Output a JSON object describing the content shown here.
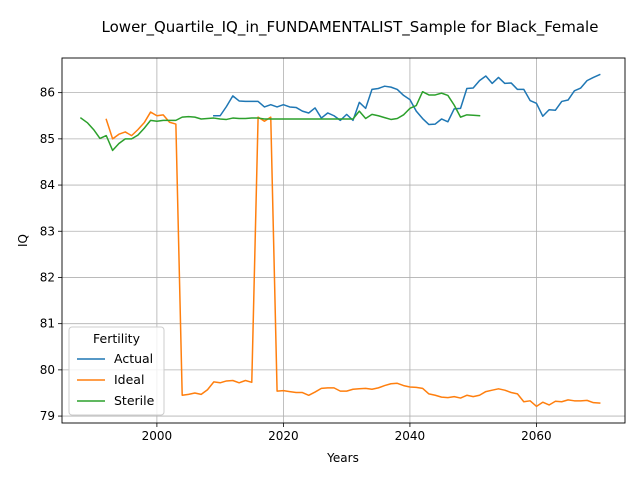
{
  "chart_data": {
    "type": "line",
    "title": "Lower_Quartile_IQ_in_FUNDAMENTALIST_Sample for Black_Female",
    "xlabel": "Years",
    "ylabel": "IQ",
    "xlim": [
      1985,
      2074
    ],
    "ylim": [
      78.85,
      86.75
    ],
    "xticks": [
      2000,
      2020,
      2040,
      2060
    ],
    "yticks": [
      79,
      80,
      81,
      82,
      83,
      84,
      85,
      86
    ],
    "grid": true,
    "legend": {
      "title": "Fertility",
      "placement": "lower-left"
    },
    "series": [
      {
        "name": "Actual",
        "color": "#1f77b4",
        "x": [
          2009,
          2010,
          2011,
          2012,
          2013,
          2014,
          2015,
          2016,
          2017,
          2018,
          2019,
          2020,
          2021,
          2022,
          2023,
          2024,
          2025,
          2026,
          2027,
          2028,
          2029,
          2030,
          2031,
          2032,
          2033,
          2034,
          2035,
          2036,
          2037,
          2038,
          2039,
          2040,
          2041,
          2042,
          2043,
          2044,
          2045,
          2046,
          2047,
          2048,
          2049,
          2050,
          2051,
          2052,
          2053,
          2054,
          2055,
          2056,
          2057,
          2058,
          2059,
          2060,
          2061,
          2062,
          2063,
          2064,
          2065,
          2066,
          2067,
          2068,
          2069,
          2070
        ],
        "y": [
          85.5,
          85.5,
          85.7,
          85.93,
          85.82,
          85.81,
          85.81,
          85.81,
          85.69,
          85.74,
          85.69,
          85.74,
          85.69,
          85.68,
          85.6,
          85.56,
          85.67,
          85.45,
          85.56,
          85.5,
          85.4,
          85.53,
          85.4,
          85.79,
          85.66,
          86.07,
          86.09,
          86.14,
          86.12,
          86.07,
          85.94,
          85.85,
          85.6,
          85.44,
          85.31,
          85.32,
          85.43,
          85.37,
          85.65,
          85.66,
          86.09,
          86.1,
          86.26,
          86.36,
          86.2,
          86.33,
          86.2,
          86.21,
          86.07,
          86.07,
          85.83,
          85.77,
          85.49,
          85.63,
          85.62,
          85.81,
          85.84,
          86.04,
          86.1,
          86.26,
          86.33,
          86.39
        ]
      },
      {
        "name": "Ideal",
        "color": "#ff7f0e",
        "x": [
          1992,
          1993,
          1994,
          1995,
          1996,
          1997,
          1998,
          1999,
          2000,
          2001,
          2002,
          2003,
          2004,
          2005,
          2006,
          2007,
          2008,
          2009,
          2010,
          2011,
          2012,
          2013,
          2014,
          2015,
          2016,
          2017,
          2018,
          2019,
          2020,
          2021,
          2022,
          2023,
          2024,
          2025,
          2026,
          2027,
          2028,
          2029,
          2030,
          2031,
          2032,
          2033,
          2034,
          2035,
          2036,
          2037,
          2038,
          2039,
          2040,
          2041,
          2042,
          2043,
          2044,
          2045,
          2046,
          2047,
          2048,
          2049,
          2050,
          2051,
          2052,
          2053,
          2054,
          2055,
          2056,
          2057,
          2058,
          2059,
          2060,
          2061,
          2062,
          2063,
          2064,
          2065,
          2066,
          2067,
          2068,
          2069,
          2070
        ],
        "y": [
          85.42,
          85.0,
          85.1,
          85.15,
          85.07,
          85.2,
          85.35,
          85.58,
          85.5,
          85.52,
          85.36,
          85.32,
          79.45,
          79.47,
          79.5,
          79.47,
          79.57,
          79.74,
          79.72,
          79.76,
          79.77,
          79.72,
          79.77,
          79.73,
          85.47,
          85.38,
          85.47,
          79.54,
          79.55,
          79.53,
          79.51,
          79.51,
          79.45,
          79.52,
          79.6,
          79.61,
          79.61,
          79.54,
          79.54,
          79.58,
          79.59,
          79.6,
          79.58,
          79.61,
          79.66,
          79.7,
          79.71,
          79.66,
          79.63,
          79.62,
          79.6,
          79.48,
          79.45,
          79.41,
          79.4,
          79.42,
          79.39,
          79.45,
          79.42,
          79.45,
          79.53,
          79.56,
          79.59,
          79.56,
          79.51,
          79.48,
          79.31,
          79.33,
          79.21,
          79.3,
          79.24,
          79.32,
          79.31,
          79.35,
          79.33,
          79.33,
          79.34,
          79.29,
          79.28
        ]
      },
      {
        "name": "Sterile",
        "color": "#2ca02c",
        "x": [
          1988,
          1989,
          1990,
          1991,
          1992,
          1993,
          1994,
          1995,
          1996,
          1997,
          1998,
          1999,
          2000,
          2001,
          2002,
          2003,
          2004,
          2005,
          2006,
          2007,
          2008,
          2009,
          2010,
          2011,
          2012,
          2013,
          2014,
          2015,
          2016,
          2017,
          2018,
          2019,
          2020,
          2021,
          2022,
          2023,
          2024,
          2025,
          2026,
          2027,
          2028,
          2029,
          2030,
          2031,
          2032,
          2033,
          2034,
          2035,
          2036,
          2037,
          2038,
          2039,
          2040,
          2041,
          2042,
          2043,
          2044,
          2045,
          2046,
          2047,
          2048,
          2049,
          2050,
          2051
        ],
        "y": [
          85.45,
          85.35,
          85.2,
          85.01,
          85.07,
          84.75,
          84.9,
          85.0,
          85.0,
          85.08,
          85.23,
          85.4,
          85.38,
          85.4,
          85.4,
          85.4,
          85.47,
          85.48,
          85.47,
          85.43,
          85.44,
          85.45,
          85.43,
          85.42,
          85.45,
          85.44,
          85.44,
          85.45,
          85.45,
          85.43,
          85.43,
          85.43,
          85.43,
          85.43,
          85.43,
          85.43,
          85.43,
          85.43,
          85.43,
          85.43,
          85.43,
          85.43,
          85.43,
          85.43,
          85.6,
          85.44,
          85.53,
          85.5,
          85.46,
          85.42,
          85.44,
          85.52,
          85.66,
          85.72,
          86.02,
          85.95,
          85.95,
          85.99,
          85.94,
          85.73,
          85.47,
          85.52,
          85.51,
          85.5
        ]
      }
    ]
  }
}
